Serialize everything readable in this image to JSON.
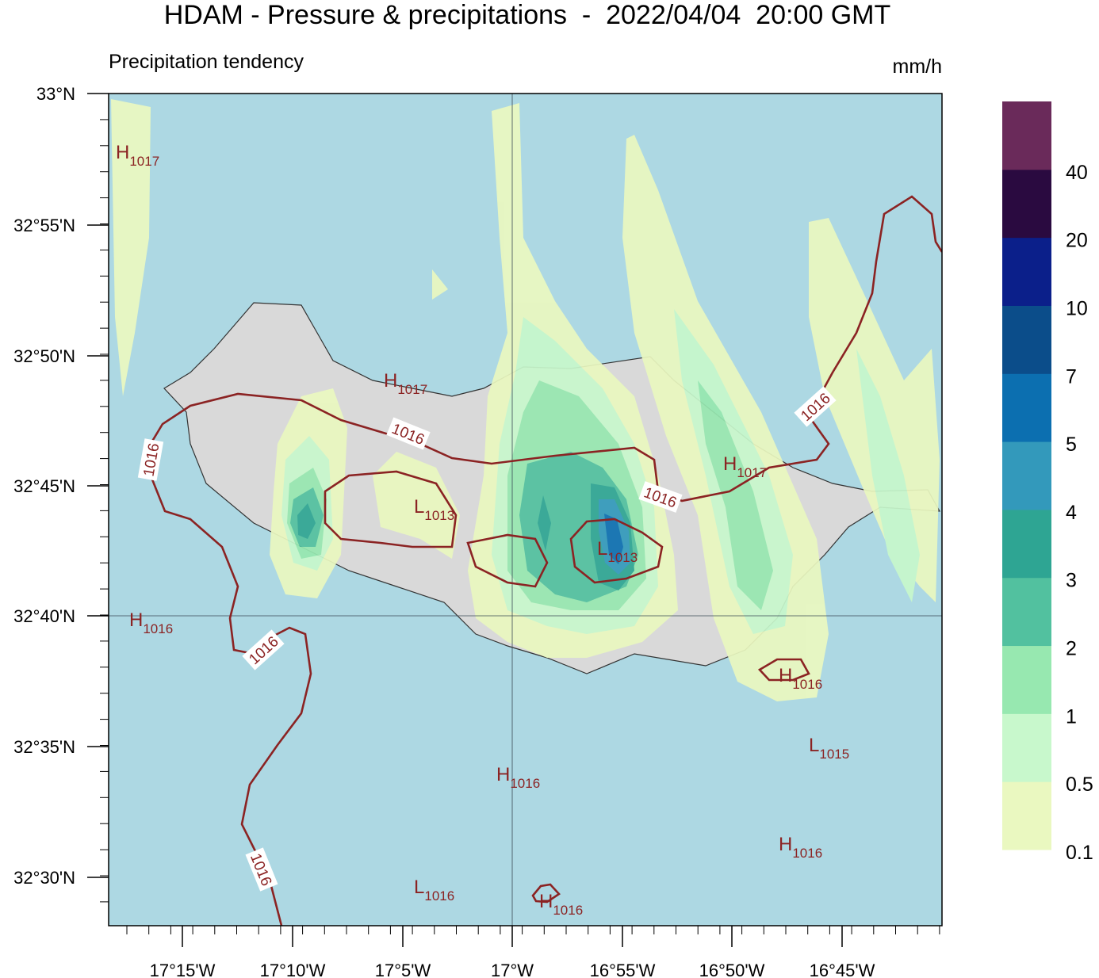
{
  "title": "HDAM - Pressure & precipitations  -  2022/04/04  20:00 GMT",
  "subtitle": "Precipitation tendency",
  "unit": "mm/h",
  "y_labels": [
    "33°N",
    "32°55'N",
    "32°50'N",
    "32°45'N",
    "32°40'N",
    "32°35'N",
    "32°30'N"
  ],
  "x_labels": [
    "17°15'W",
    "17°10'W",
    "17°5'W",
    "17°W",
    "16°55'W",
    "16°50'W",
    "16°45'W"
  ],
  "pressure_centers": [
    {
      "type": "H",
      "value": "1017"
    },
    {
      "type": "H",
      "value": "1017"
    },
    {
      "type": "L",
      "value": "1013"
    },
    {
      "type": "L",
      "value": "1013"
    },
    {
      "type": "H",
      "value": "1017"
    },
    {
      "type": "H",
      "value": "1016"
    },
    {
      "type": "H",
      "value": "1016"
    },
    {
      "type": "L",
      "value": "1015"
    },
    {
      "type": "H",
      "value": "1016"
    },
    {
      "type": "H",
      "value": "1016"
    },
    {
      "type": "L",
      "value": "1016"
    },
    {
      "type": "H",
      "value": "1016"
    }
  ],
  "contour_labels": [
    "1016",
    "1016",
    "1016",
    "1016",
    "1016",
    "1016"
  ],
  "colorbar": {
    "levels": [
      "0.1",
      "0.5",
      "1",
      "2",
      "3",
      "4",
      "5",
      "7",
      "10",
      "20",
      "40"
    ],
    "colors": [
      "#eaf8c0",
      "#c8f8cc",
      "#97e8b0",
      "#52c19f",
      "#2ea593",
      "#3399bb",
      "#0c6fb0",
      "#0b4d8a",
      "#0b1f8a",
      "#2a0a40",
      "#6a2a5a"
    ]
  }
}
